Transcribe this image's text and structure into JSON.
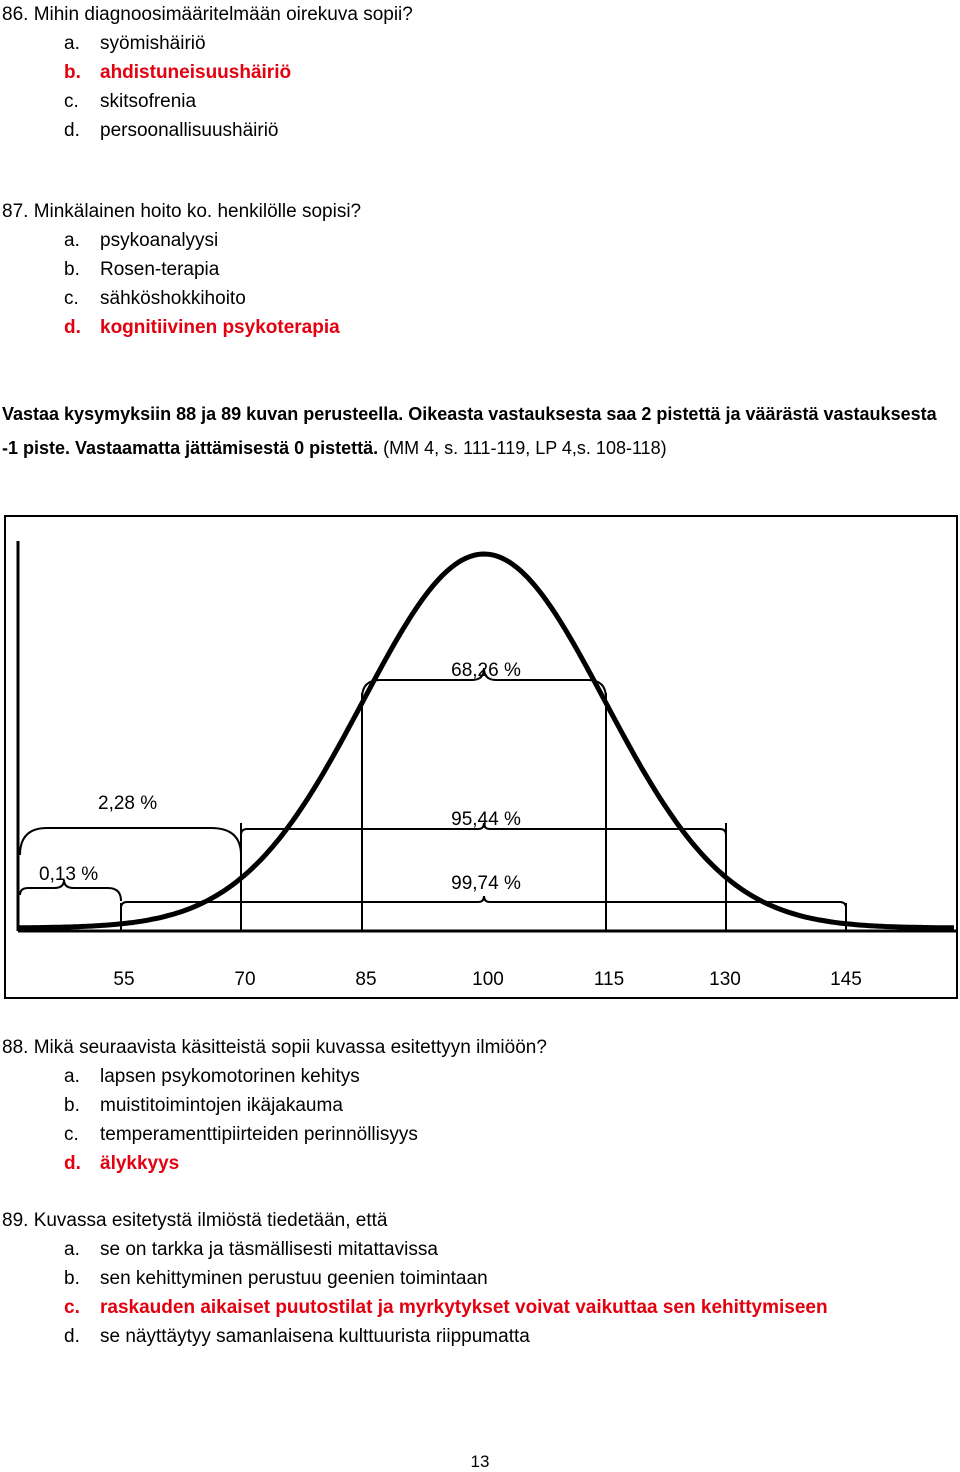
{
  "q86": {
    "question": "86. Mihin diagnoosimääritelmään oirekuva sopii?",
    "options": [
      {
        "letter": "a.",
        "text": "syömishäiriö",
        "correct": false
      },
      {
        "letter": "b.",
        "text": "ahdistuneisuushäiriö",
        "correct": true
      },
      {
        "letter": "c.",
        "text": "skitsofrenia",
        "correct": false
      },
      {
        "letter": "d.",
        "text": "persoonallisuushäiriö",
        "correct": false
      }
    ]
  },
  "q87": {
    "question": "87. Minkälainen hoito ko. henkilölle sopisi?",
    "options": [
      {
        "letter": "a.",
        "text": "psykoanalyysi",
        "correct": false
      },
      {
        "letter": "b.",
        "text": "Rosen-terapia",
        "correct": false
      },
      {
        "letter": "c.",
        "text": "sähköshokkihoito",
        "correct": false
      },
      {
        "letter": "d.",
        "text": "kognitiivinen psykoterapia",
        "correct": true
      }
    ]
  },
  "instructions": {
    "bold": "Vastaa kysymyksiin 88 ja 89 kuvan perusteella. Oikeasta vastauksesta saa 2 pistettä ja väärästä vastauksesta -1 piste. Vastaamatta jättämisestä 0 pistettä.",
    "normal": " (MM 4, s. 111-119, LP 4,s. 108-118)"
  },
  "figure": {
    "ticks": [
      "55",
      "70",
      "85",
      "100",
      "115",
      "130",
      "145"
    ],
    "labels": {
      "p6826": "68,26 %",
      "p9544": "95,44 %",
      "p9974": "99,74 %",
      "p228": "2,28 %",
      "p013": "0,13 %"
    }
  },
  "q88": {
    "question": "88. Mikä seuraavista käsitteistä sopii kuvassa esitettyyn ilmiöön?",
    "options": [
      {
        "letter": "a.",
        "text": "lapsen psykomotorinen kehitys",
        "correct": false
      },
      {
        "letter": "b.",
        "text": "muistitoimintojen ikäjakauma",
        "correct": false
      },
      {
        "letter": "c.",
        "text": "temperamenttipiirteiden perinnöllisyys",
        "correct": false
      },
      {
        "letter": "d.",
        "text": "älykkyys",
        "correct": true
      }
    ]
  },
  "q89": {
    "question": "89. Kuvassa esitetystä ilmiöstä tiedetään, että",
    "options": [
      {
        "letter": "a.",
        "text": "se on tarkka ja täsmällisesti mitattavissa",
        "correct": false
      },
      {
        "letter": "b.",
        "text": "sen kehittyminen perustuu geenien toimintaan",
        "correct": false
      },
      {
        "letter": "c.",
        "text": "raskauden aikaiset puutostilat ja myrkytykset voivat vaikuttaa sen kehittymiseen",
        "correct": true
      },
      {
        "letter": "d.",
        "text": "se näyttäytyy samanlaisena kulttuurista riippumatta",
        "correct": false
      }
    ]
  },
  "page_number": "13"
}
